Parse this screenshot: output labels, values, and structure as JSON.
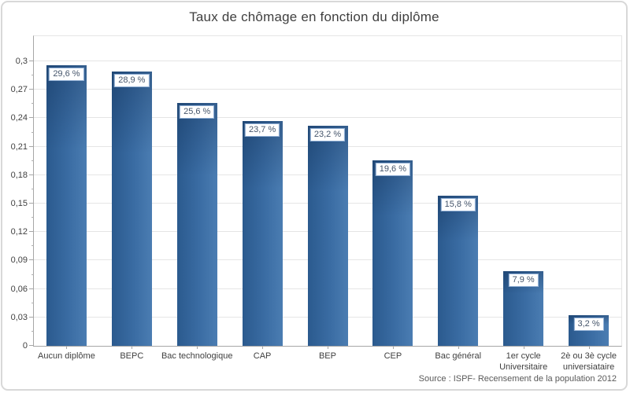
{
  "chart_data": {
    "type": "bar",
    "title": "Taux de chômage en fonction du diplôme",
    "categories": [
      "Aucun diplôme",
      "BEPC",
      "Bac technologique",
      "CAP",
      "BEP",
      "CEP",
      "Bac général",
      "1er cycle Universitaire",
      "2è ou 3è cycle universiataire"
    ],
    "values": [
      0.296,
      0.289,
      0.256,
      0.237,
      0.232,
      0.196,
      0.158,
      0.079,
      0.032
    ],
    "value_labels": [
      "29,6 %",
      "28,9 %",
      "25,6 %",
      "23,7 %",
      "23,2 %",
      "19,6 %",
      "15,8 %",
      "7,9 %",
      "3,2 %"
    ],
    "xlabel": "",
    "ylabel": "",
    "yticks": [
      0,
      0.03,
      0.06,
      0.09,
      0.12,
      0.15,
      0.18,
      0.21,
      0.24,
      0.27,
      0.3
    ],
    "ytick_labels": [
      "0",
      "0,03",
      "0,06",
      "0,09",
      "0,12",
      "0,15",
      "0,18",
      "0,21",
      "0,24",
      "0,27",
      "0,3"
    ],
    "ylim": [
      0,
      0.33
    ],
    "minor_tick_interval": 0.015,
    "grid": "horizontal",
    "legend": "none",
    "source": "Source : ISPF- Recensement de la population 2012"
  },
  "colors": {
    "bar_dark": "#2b5a8e",
    "bar_mid": "#3a6ca3",
    "bar_light": "#4b7db2",
    "bar_top_shade": "rgba(10,35,70,0.33)",
    "grid": "#e5e5e5",
    "axis": "#a6a6a6",
    "value_box_border": "#8eadd3",
    "value_text": "#44546a",
    "title_text": "#3f3f3f",
    "tick_text": "#404040",
    "source_text": "#595959"
  }
}
